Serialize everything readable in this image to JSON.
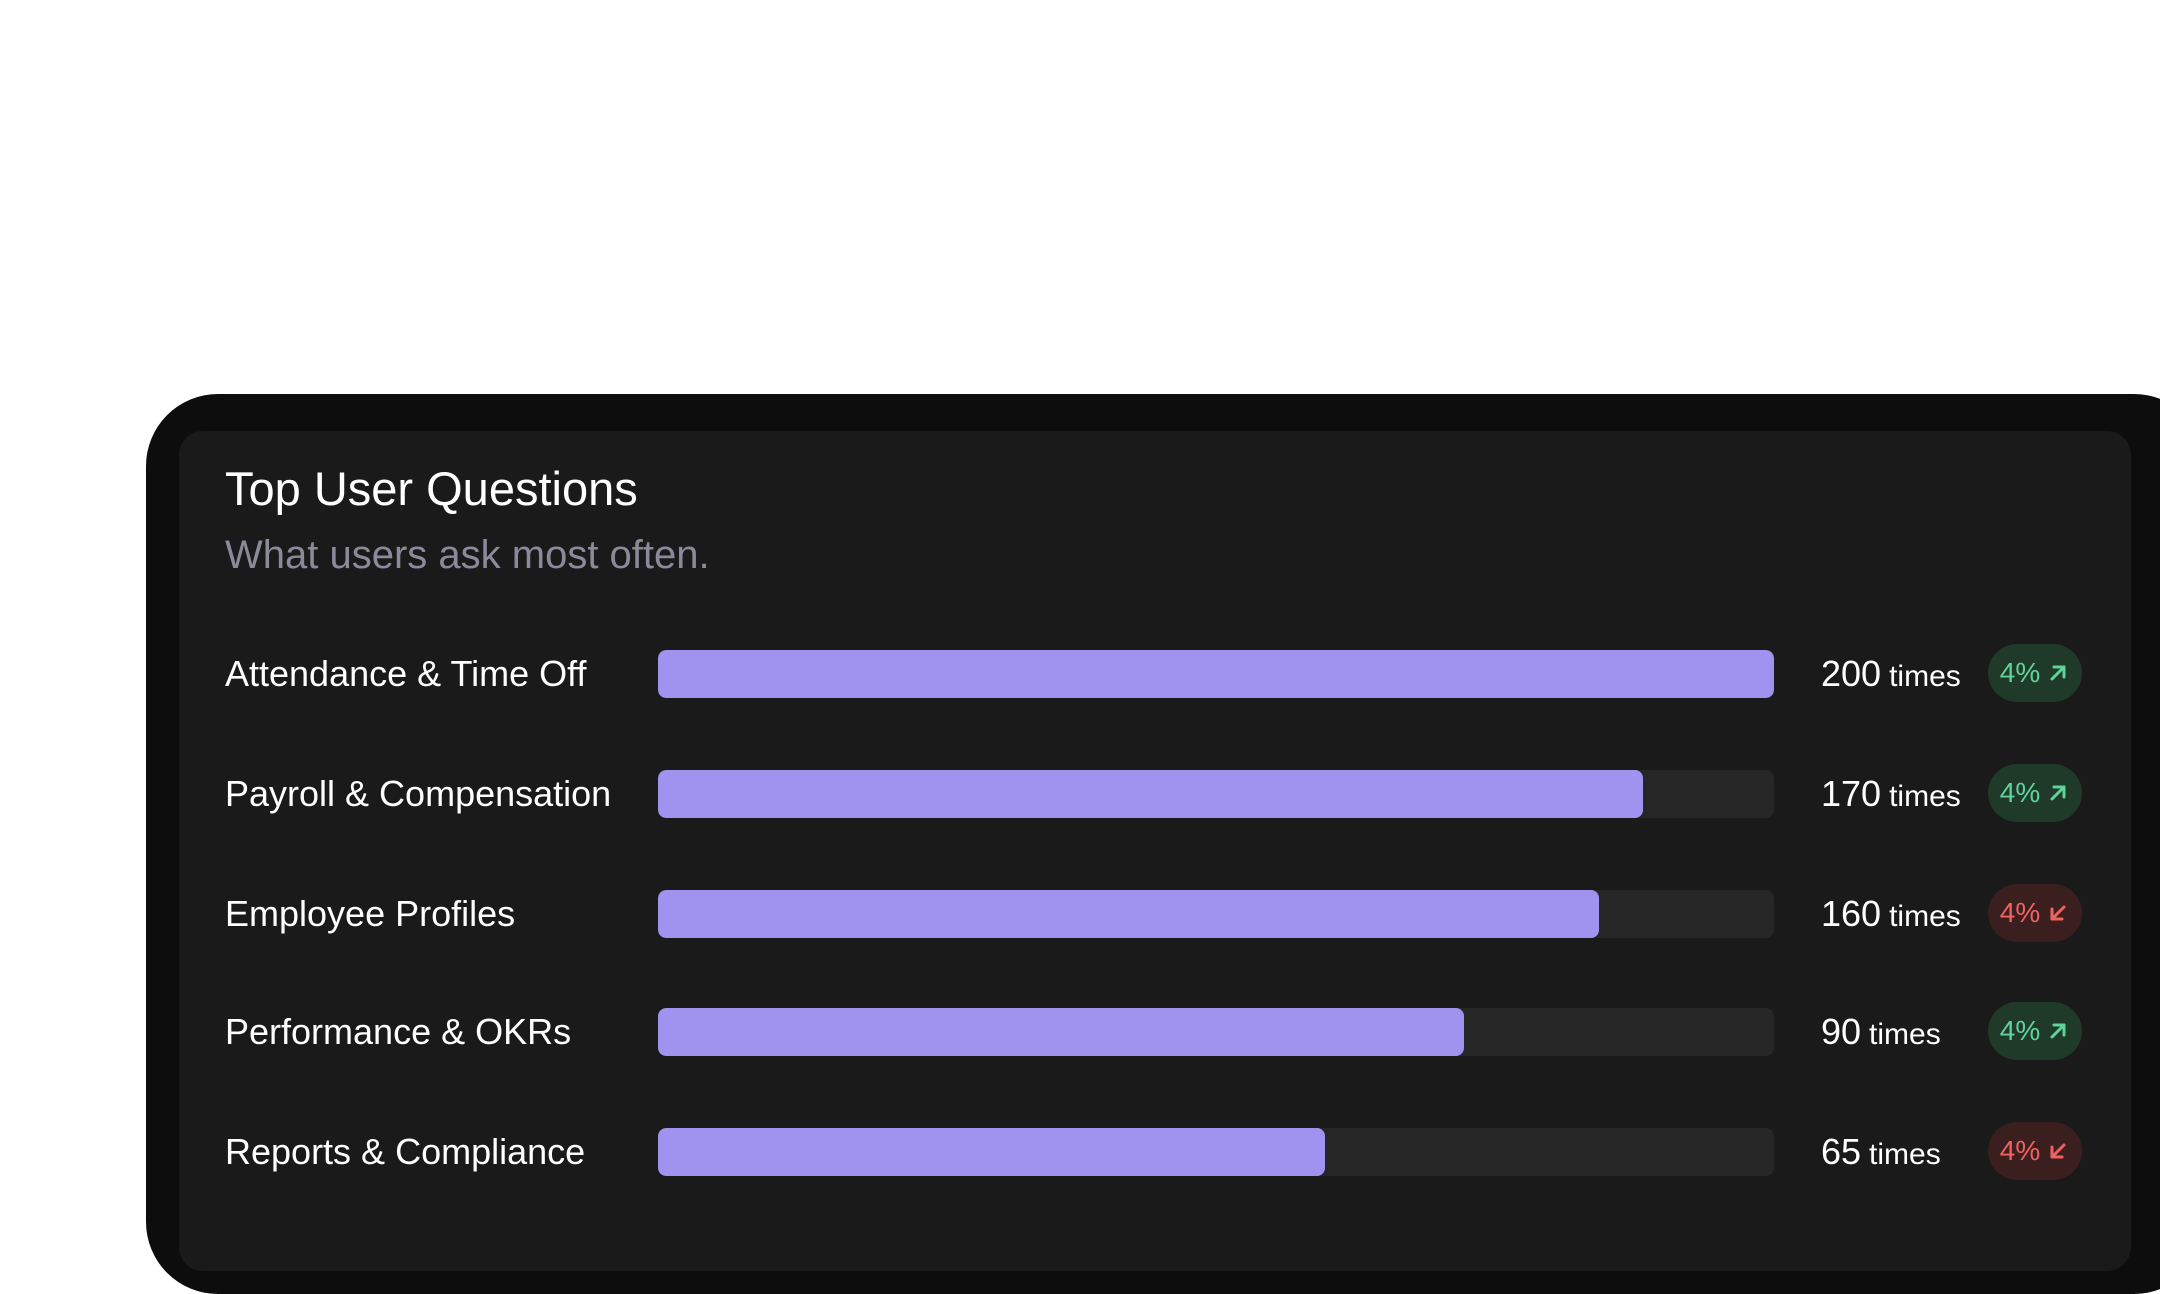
{
  "card": {
    "title": "Top User Questions",
    "subtitle": "What users ask most often."
  },
  "colors": {
    "bar_fill": "#a093ef",
    "bar_track": "#262626",
    "trend_up": "#5fd39a",
    "trend_down": "#f06161"
  },
  "chart_data": {
    "type": "bar",
    "orientation": "horizontal",
    "categories": [
      "Attendance & Time Off",
      "Payroll & Compensation",
      "Employee Profiles",
      "Performance & OKRs",
      "Reports & Compliance"
    ],
    "values": [
      200,
      170,
      160,
      90,
      65
    ],
    "unit": "times"
  },
  "rows": [
    {
      "label": "Attendance & Time Off",
      "count": "200",
      "unit": "times",
      "fill": 1.0,
      "change": "4%",
      "trend": "up",
      "trend_icon": "arrow-up-right-icon"
    },
    {
      "label": "Payroll & Compensation",
      "count": "170",
      "unit": "times",
      "fill": 0.883,
      "change": "4%",
      "trend": "up",
      "trend_icon": "arrow-up-right-icon"
    },
    {
      "label": "Employee Profiles",
      "count": "160",
      "unit": "times",
      "fill": 0.843,
      "change": "4%",
      "trend": "down",
      "trend_icon": "arrow-down-left-icon"
    },
    {
      "label": "Performance & OKRs",
      "count": "90",
      "unit": "times",
      "fill": 0.722,
      "change": "4%",
      "trend": "up",
      "trend_icon": "arrow-up-right-icon"
    },
    {
      "label": "Reports & Compliance",
      "count": "65",
      "unit": "times",
      "fill": 0.598,
      "change": "4%",
      "trend": "down",
      "trend_icon": "arrow-down-left-icon"
    }
  ]
}
